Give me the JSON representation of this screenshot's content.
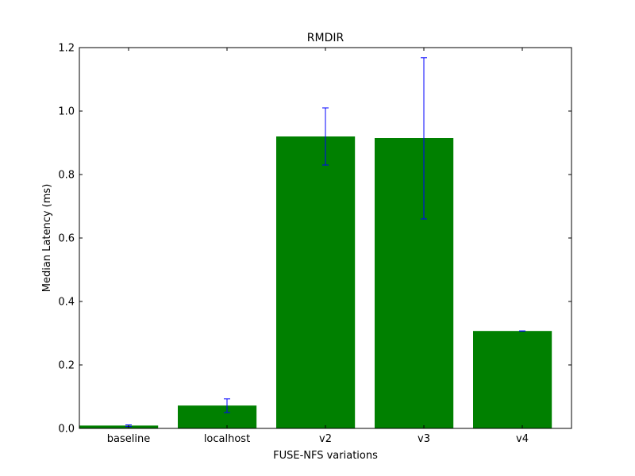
{
  "chart_data": {
    "type": "bar",
    "title": "RMDIR",
    "xlabel": "FUSE-NFS variations",
    "ylabel": "Median Latency (ms)",
    "categories": [
      "baseline",
      "localhost",
      "v2",
      "v3",
      "v4"
    ],
    "values": [
      0.009,
      0.072,
      0.92,
      0.915,
      0.307
    ],
    "error_low": [
      0.006,
      0.05,
      0.83,
      0.66,
      0.307
    ],
    "error_high": [
      0.011,
      0.093,
      1.01,
      1.168,
      0.307
    ],
    "ylim": [
      0,
      1.2
    ],
    "yticks": [
      "0.0",
      "0.2",
      "0.4",
      "0.6",
      "0.8",
      "1.0",
      "1.2"
    ],
    "grid": false,
    "colors": {
      "bar": "#008000",
      "error": "#0000ff",
      "axes": "#000000"
    }
  }
}
